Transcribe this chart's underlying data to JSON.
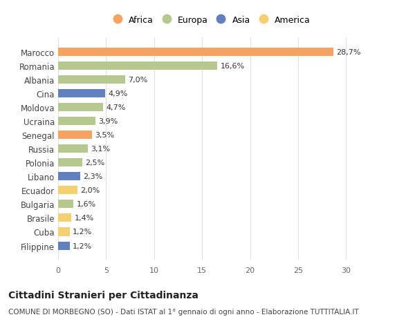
{
  "countries": [
    "Marocco",
    "Romania",
    "Albania",
    "Cina",
    "Moldova",
    "Ucraina",
    "Senegal",
    "Russia",
    "Polonia",
    "Libano",
    "Ecuador",
    "Bulgaria",
    "Brasile",
    "Cuba",
    "Filippine"
  ],
  "values": [
    28.7,
    16.6,
    7.0,
    4.9,
    4.7,
    3.9,
    3.5,
    3.1,
    2.5,
    2.3,
    2.0,
    1.6,
    1.4,
    1.2,
    1.2
  ],
  "labels": [
    "28,7%",
    "16,6%",
    "7,0%",
    "4,9%",
    "4,7%",
    "3,9%",
    "3,5%",
    "3,1%",
    "2,5%",
    "2,3%",
    "2,0%",
    "1,6%",
    "1,4%",
    "1,2%",
    "1,2%"
  ],
  "continents": [
    "Africa",
    "Europa",
    "Europa",
    "Asia",
    "Europa",
    "Europa",
    "Africa",
    "Europa",
    "Europa",
    "Asia",
    "America",
    "Europa",
    "America",
    "America",
    "Asia"
  ],
  "colors": {
    "Africa": "#F4A460",
    "Europa": "#B5C98E",
    "Asia": "#6080C0",
    "America": "#F5D070"
  },
  "xlim": [
    0,
    32
  ],
  "xticks": [
    0,
    5,
    10,
    15,
    20,
    25,
    30
  ],
  "background_color": "#ffffff",
  "grid_color": "#e0e0e0",
  "title": "Cittadini Stranieri per Cittadinanza",
  "subtitle": "COMUNE DI MORBEGNO (SO) - Dati ISTAT al 1° gennaio di ogni anno - Elaborazione TUTTITALIA.IT",
  "bar_height": 0.6,
  "legend_order": [
    "Africa",
    "Europa",
    "Asia",
    "America"
  ]
}
